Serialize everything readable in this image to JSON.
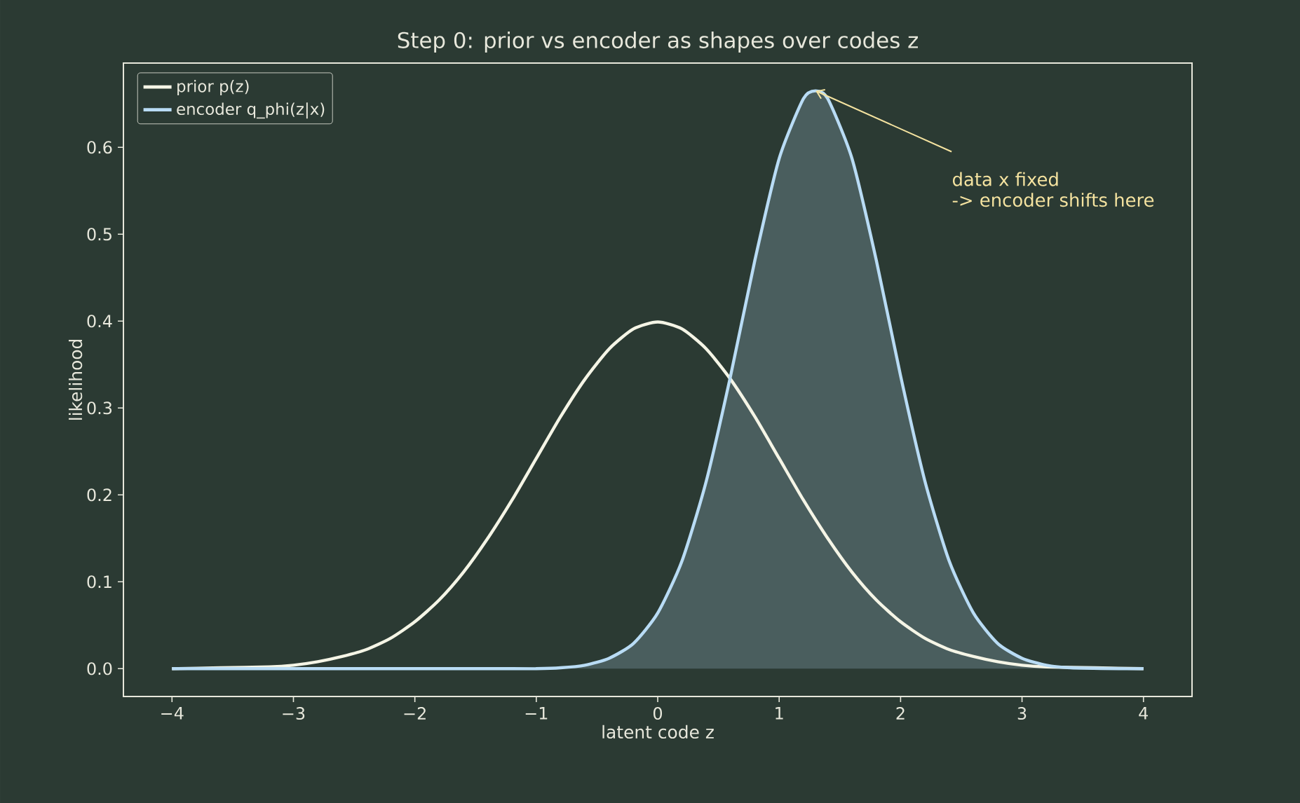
{
  "chart_data": {
    "type": "line",
    "title": "Step 0: prior vs encoder as shapes over codes z",
    "xlabel": "latent code z",
    "ylabel": "likelihood",
    "xlim": [
      -4.4,
      4.4
    ],
    "ylim": [
      -0.032,
      0.697
    ],
    "xticks": [
      {
        "value": -4,
        "label": "−4"
      },
      {
        "value": -3,
        "label": "−3"
      },
      {
        "value": -2,
        "label": "−2"
      },
      {
        "value": -1,
        "label": "−1"
      },
      0,
      1,
      2,
      3,
      4
    ],
    "yticks": [
      {
        "value": 0,
        "label": "0.0"
      },
      0.1,
      0.2,
      0.3,
      0.4,
      0.5,
      0.6
    ],
    "legend": "top left",
    "series": [
      {
        "name": "prior p(z)",
        "color": "#f5f5e6",
        "x": [
          -4,
          -3.6,
          -3.2,
          -3,
          -2.8,
          -2.6,
          -2.4,
          -2.2,
          -2,
          -1.8,
          -1.6,
          -1.4,
          -1.2,
          -1,
          -0.8,
          -0.6,
          -0.4,
          -0.2,
          0,
          0.2,
          0.4,
          0.6,
          0.8,
          1,
          1.2,
          1.4,
          1.6,
          1.8,
          2,
          2.2,
          2.4,
          2.6,
          2.8,
          3,
          3.2,
          3.6,
          4
        ],
        "values": [
          0.0,
          0.001,
          0.002,
          0.004,
          0.008,
          0.014,
          0.022,
          0.035,
          0.054,
          0.079,
          0.111,
          0.15,
          0.194,
          0.242,
          0.29,
          0.333,
          0.368,
          0.391,
          0.399,
          0.391,
          0.368,
          0.333,
          0.29,
          0.242,
          0.194,
          0.15,
          0.111,
          0.079,
          0.054,
          0.035,
          0.022,
          0.014,
          0.008,
          0.004,
          0.002,
          0.001,
          0.0
        ]
      },
      {
        "name": "encoder q_phi(z|x)",
        "type": "area",
        "color": "#b9dcf5",
        "x": [
          -4,
          -1.2,
          -1,
          -0.8,
          -0.6,
          -0.4,
          -0.2,
          0,
          0.2,
          0.4,
          0.6,
          0.8,
          1,
          1.2,
          1.3,
          1.4,
          1.6,
          1.8,
          2,
          2.2,
          2.4,
          2.6,
          2.8,
          3,
          3.2,
          3.4,
          3.8,
          4
        ],
        "values": [
          0.0,
          0.0,
          0.0,
          0.001,
          0.004,
          0.012,
          0.029,
          0.064,
          0.124,
          0.216,
          0.337,
          0.47,
          0.587,
          0.656,
          0.665,
          0.656,
          0.587,
          0.47,
          0.337,
          0.216,
          0.124,
          0.064,
          0.029,
          0.012,
          0.004,
          0.001,
          0.0,
          0.0
        ]
      }
    ],
    "annotations": [
      {
        "text": "data x fixed",
        "x": 1.3,
        "y": 0.665
      },
      "-> encoder shifts here"
    ]
  }
}
